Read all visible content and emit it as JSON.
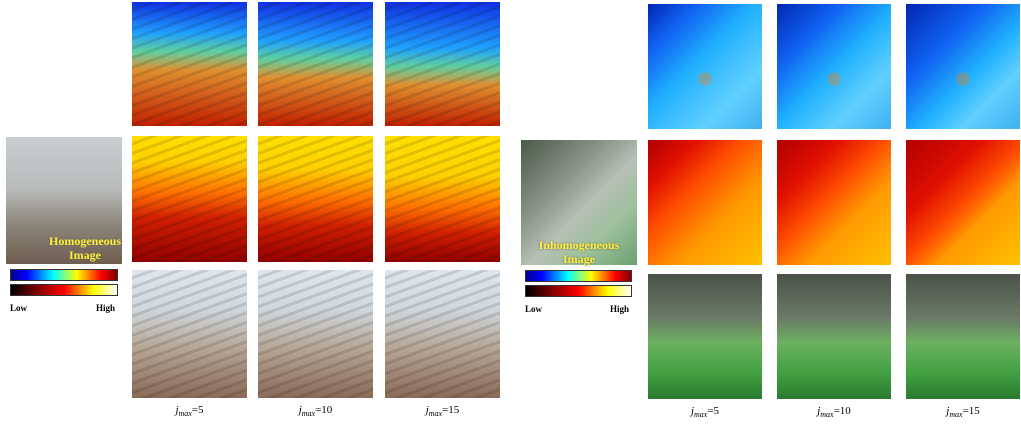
{
  "panels": [
    {
      "image_label": [
        "Homogeneous",
        "Image"
      ],
      "colorbar": {
        "low": "Low",
        "high": "High"
      },
      "columns": [
        {
          "symbol": "j",
          "subscript": "max",
          "setting": "=5"
        },
        {
          "symbol": "j",
          "subscript": "max",
          "setting": "=10"
        },
        {
          "symbol": "j",
          "subscript": "max",
          "setting": "=15"
        }
      ]
    },
    {
      "image_label": [
        "Inhomogeneous",
        "Image"
      ],
      "colorbar": {
        "low": "Low",
        "high": "High"
      },
      "columns": [
        {
          "symbol": "j",
          "subscript": "max",
          "setting": "=5"
        },
        {
          "symbol": "j",
          "subscript": "max",
          "setting": "=10"
        },
        {
          "symbol": "j",
          "subscript": "max",
          "setting": "=15"
        }
      ]
    }
  ]
}
